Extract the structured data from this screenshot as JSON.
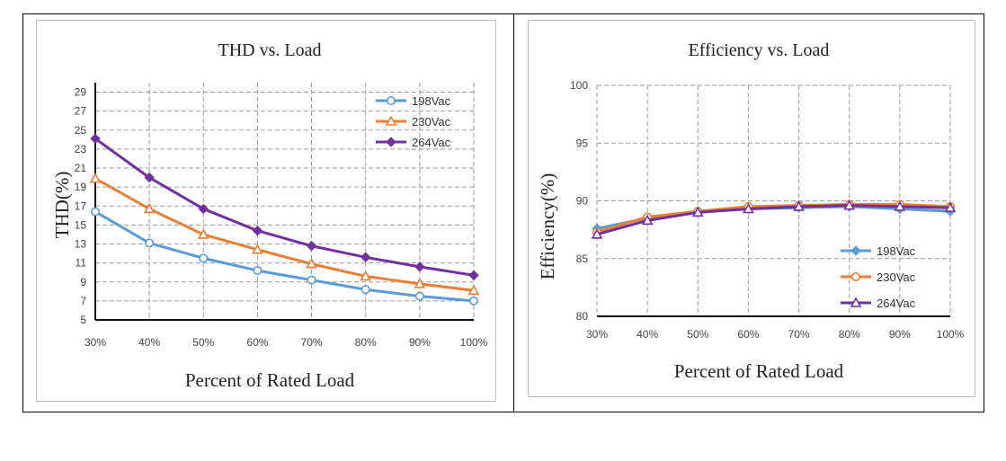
{
  "charts": [
    {
      "id": "thd",
      "type": "line",
      "title": "THD vs. Load",
      "xlabel": "Percent of Rated Load",
      "ylabel": "THD(%)",
      "categories": [
        "30%",
        "40%",
        "50%",
        "60%",
        "70%",
        "80%",
        "90%",
        "100%"
      ],
      "yticks": [
        5,
        7,
        9,
        11,
        13,
        15,
        17,
        19,
        21,
        23,
        25,
        27,
        29
      ],
      "ylim": [
        5,
        30
      ],
      "grid": true,
      "legend": "top-right",
      "series": [
        {
          "name": "198Vac",
          "color": "#5b9bd5",
          "marker": "circle",
          "values": [
            16.4,
            13.1,
            11.5,
            10.2,
            9.2,
            8.2,
            7.5,
            7.0
          ]
        },
        {
          "name": "230Vac",
          "color": "#ed7d31",
          "marker": "triangle",
          "values": [
            19.9,
            16.7,
            14.0,
            12.4,
            10.9,
            9.6,
            8.8,
            8.1
          ]
        },
        {
          "name": "264Vac",
          "color": "#7030a0",
          "marker": "diamond",
          "values": [
            24.1,
            20.0,
            16.7,
            14.4,
            12.8,
            11.6,
            10.6,
            9.7
          ]
        }
      ]
    },
    {
      "id": "eff",
      "type": "line",
      "title": "Efficiency vs. Load",
      "xlabel": "Percent of Rated Load",
      "ylabel": "Efficiency(%)",
      "categories": [
        "30%",
        "40%",
        "50%",
        "60%",
        "70%",
        "80%",
        "90%",
        "100%"
      ],
      "yticks": [
        80,
        85,
        90,
        95,
        100
      ],
      "ylim": [
        80,
        100
      ],
      "grid": true,
      "legend": "bottom-right",
      "series": [
        {
          "name": "198Vac",
          "color": "#5b9bd5",
          "marker": "diamond",
          "values": [
            87.6,
            88.5,
            89.1,
            89.3,
            89.4,
            89.5,
            89.3,
            89.1
          ]
        },
        {
          "name": "230Vac",
          "color": "#ed7d31",
          "marker": "circle",
          "values": [
            87.3,
            88.6,
            89.1,
            89.5,
            89.6,
            89.7,
            89.7,
            89.5
          ]
        },
        {
          "name": "264Vac",
          "color": "#7030a0",
          "marker": "triangle",
          "values": [
            87.1,
            88.3,
            89.0,
            89.3,
            89.5,
            89.6,
            89.5,
            89.4
          ]
        }
      ]
    }
  ]
}
